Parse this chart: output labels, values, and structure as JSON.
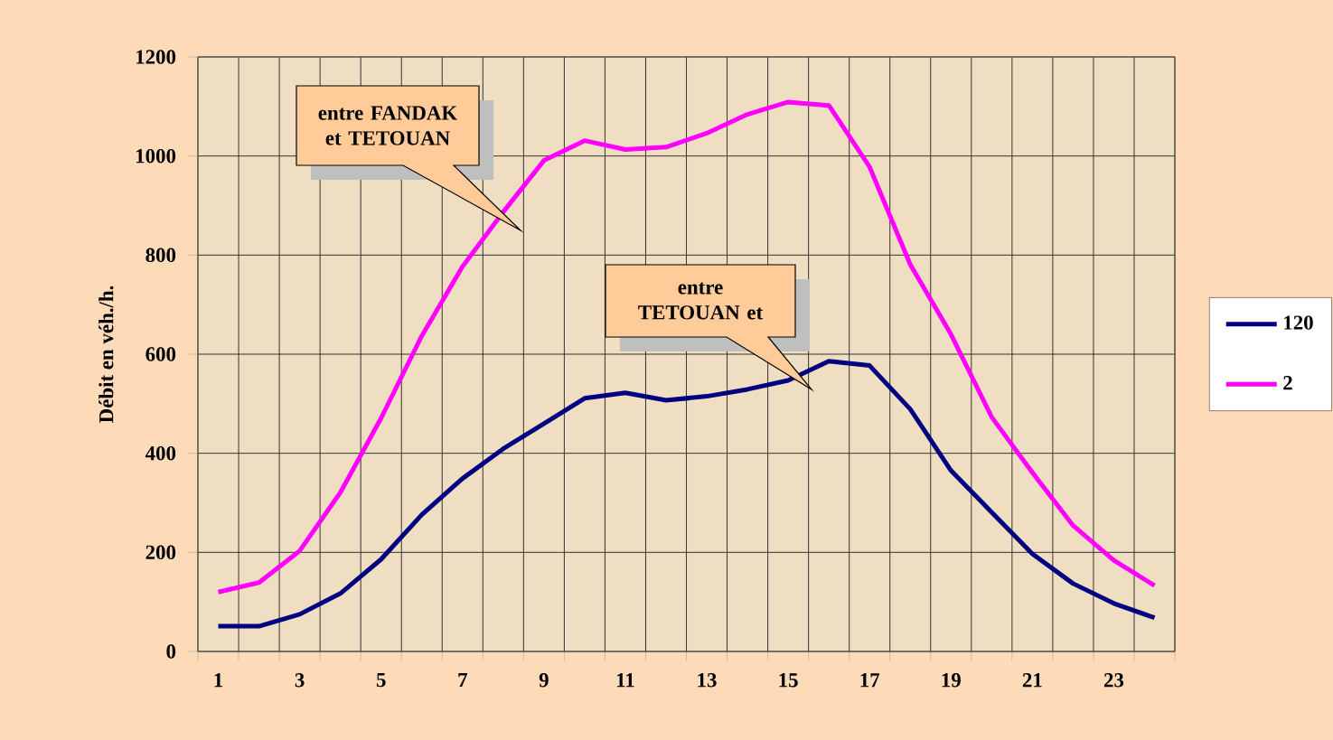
{
  "chart_data": {
    "type": "line",
    "ylabel": "Débit en véh./h.",
    "categories": [
      "1",
      null,
      "3",
      null,
      "5",
      null,
      "7",
      null,
      "9",
      null,
      "11",
      null,
      "13",
      null,
      "15",
      null,
      "17",
      null,
      "19",
      null,
      "21",
      null,
      "23",
      null
    ],
    "series": [
      {
        "name": "120",
        "color": "#000080",
        "values": [
          51,
          51,
          75,
          117,
          186,
          276,
          349,
          409,
          460,
          511,
          522,
          507,
          515,
          529,
          547,
          586,
          577,
          489,
          365,
          281,
          197,
          137,
          97,
          68
        ]
      },
      {
        "name": "2",
        "color": "#ff00ff",
        "values": [
          120,
          139,
          203,
          321,
          471,
          637,
          777,
          887,
          991,
          1031,
          1013,
          1018,
          1046,
          1084,
          1109,
          1102,
          978,
          781,
          640,
          473,
          361,
          254,
          184,
          133
        ]
      }
    ],
    "ylim": [
      0,
      1200
    ],
    "yticks": [
      0,
      200,
      400,
      600,
      800,
      1000,
      1200
    ],
    "grid": true,
    "legend": "right",
    "marker": "none",
    "line_style": "solid",
    "annotations": [
      "entre FANDAK et TETOUAN",
      "entre TETOUAN et"
    ]
  }
}
